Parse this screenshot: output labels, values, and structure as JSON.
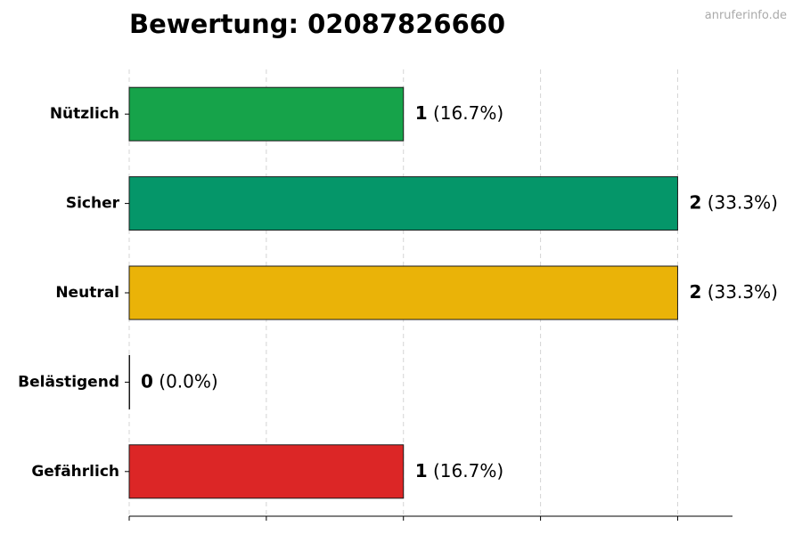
{
  "title": "Bewertung: 02087826660",
  "watermark": "anruferinfo.de",
  "chart_data": {
    "type": "bar",
    "orientation": "horizontal",
    "title": "Bewertung: 02087826660",
    "categories": [
      "Nützlich",
      "Sicher",
      "Neutral",
      "Belästigend",
      "Gefährlich"
    ],
    "values": [
      1,
      2,
      2,
      0,
      1
    ],
    "percent_labels": [
      "(16.7%)",
      "(33.3%)",
      "(33.3%)",
      "(0.0%)",
      "(16.7%)"
    ],
    "colors": [
      "#16a34a",
      "#059669",
      "#eab308",
      "#f97316",
      "#dc2626"
    ],
    "xlim": [
      0,
      2.2
    ],
    "x_ticks": [
      0,
      0.5,
      1,
      1.5,
      2
    ],
    "grid": "vertical dashed",
    "xlabel": "",
    "ylabel": ""
  }
}
